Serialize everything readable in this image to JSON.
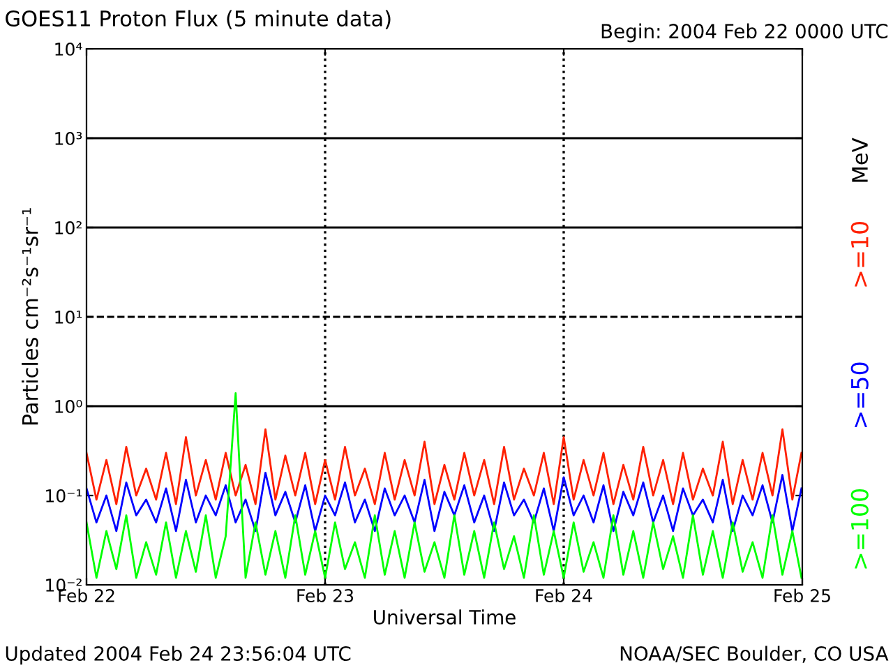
{
  "chart_data": {
    "type": "line",
    "title": "GOES11 Proton Flux (5 minute data)",
    "subtitle": "Begin: 2004 Feb 22 0000 UTC",
    "xlabel": "Universal Time",
    "ylabel": "Particles cm⁻²s⁻¹sr⁻¹",
    "legend_title": "MeV",
    "annotations": [
      "Updated 2004 Feb 24 23:56:04 UTC",
      "NOAA/SEC Boulder, CO USA"
    ],
    "x": [
      "2004-02-22T00:00",
      "2004-02-22T01:00",
      "2004-02-22T02:00",
      "2004-02-22T03:00",
      "2004-02-22T04:00",
      "2004-02-22T05:00",
      "2004-02-22T06:00",
      "2004-02-22T07:00",
      "2004-02-22T08:00",
      "2004-02-22T09:00",
      "2004-02-22T10:00",
      "2004-02-22T11:00",
      "2004-02-22T12:00",
      "2004-02-22T13:00",
      "2004-02-22T14:00",
      "2004-02-22T15:00",
      "2004-02-22T16:00",
      "2004-02-22T17:00",
      "2004-02-22T18:00",
      "2004-02-22T19:00",
      "2004-02-22T20:00",
      "2004-02-22T21:00",
      "2004-02-22T22:00",
      "2004-02-22T23:00",
      "2004-02-23T00:00",
      "2004-02-23T01:00",
      "2004-02-23T02:00",
      "2004-02-23T03:00",
      "2004-02-23T04:00",
      "2004-02-23T05:00",
      "2004-02-23T06:00",
      "2004-02-23T07:00",
      "2004-02-23T08:00",
      "2004-02-23T09:00",
      "2004-02-23T10:00",
      "2004-02-23T11:00",
      "2004-02-23T12:00",
      "2004-02-23T13:00",
      "2004-02-23T14:00",
      "2004-02-23T15:00",
      "2004-02-23T16:00",
      "2004-02-23T17:00",
      "2004-02-23T18:00",
      "2004-02-23T19:00",
      "2004-02-23T20:00",
      "2004-02-23T21:00",
      "2004-02-23T22:00",
      "2004-02-23T23:00",
      "2004-02-24T00:00",
      "2004-02-24T01:00",
      "2004-02-24T02:00",
      "2004-02-24T03:00",
      "2004-02-24T04:00",
      "2004-02-24T05:00",
      "2004-02-24T06:00",
      "2004-02-24T07:00",
      "2004-02-24T08:00",
      "2004-02-24T09:00",
      "2004-02-24T10:00",
      "2004-02-24T11:00",
      "2004-02-24T12:00",
      "2004-02-24T13:00",
      "2004-02-24T14:00",
      "2004-02-24T15:00",
      "2004-02-24T16:00",
      "2004-02-24T17:00",
      "2004-02-24T18:00",
      "2004-02-24T19:00",
      "2004-02-24T20:00",
      "2004-02-24T21:00",
      "2004-02-24T22:00",
      "2004-02-24T23:00",
      "2004-02-24T23:55"
    ],
    "series": [
      {
        "name": ">=10",
        "color": "#ff2000",
        "values": [
          0.3,
          0.09,
          0.25,
          0.08,
          0.35,
          0.1,
          0.2,
          0.09,
          0.3,
          0.08,
          0.45,
          0.1,
          0.25,
          0.09,
          0.3,
          0.1,
          0.22,
          0.08,
          0.55,
          0.09,
          0.28,
          0.1,
          0.3,
          0.08,
          0.25,
          0.09,
          0.35,
          0.1,
          0.2,
          0.08,
          0.3,
          0.09,
          0.25,
          0.1,
          0.4,
          0.08,
          0.22,
          0.09,
          0.3,
          0.1,
          0.25,
          0.08,
          0.35,
          0.09,
          0.2,
          0.1,
          0.3,
          0.08,
          0.45,
          0.09,
          0.25,
          0.1,
          0.3,
          0.08,
          0.22,
          0.09,
          0.35,
          0.1,
          0.25,
          0.08,
          0.3,
          0.09,
          0.2,
          0.1,
          0.4,
          0.08,
          0.25,
          0.09,
          0.3,
          0.1,
          0.55,
          0.09,
          0.3
        ]
      },
      {
        "name": ">=50",
        "color": "#0000ff",
        "values": [
          0.12,
          0.05,
          0.1,
          0.04,
          0.14,
          0.06,
          0.09,
          0.05,
          0.12,
          0.04,
          0.15,
          0.05,
          0.1,
          0.06,
          0.13,
          0.05,
          0.09,
          0.04,
          0.18,
          0.06,
          0.11,
          0.05,
          0.13,
          0.04,
          0.1,
          0.06,
          0.14,
          0.05,
          0.09,
          0.04,
          0.12,
          0.06,
          0.1,
          0.05,
          0.15,
          0.04,
          0.11,
          0.06,
          0.13,
          0.05,
          0.1,
          0.04,
          0.14,
          0.06,
          0.09,
          0.05,
          0.12,
          0.04,
          0.16,
          0.06,
          0.1,
          0.05,
          0.13,
          0.04,
          0.11,
          0.06,
          0.14,
          0.05,
          0.1,
          0.04,
          0.12,
          0.06,
          0.09,
          0.05,
          0.15,
          0.04,
          0.1,
          0.06,
          0.13,
          0.05,
          0.17,
          0.04,
          0.12
        ]
      },
      {
        "name": ">=100",
        "color": "#00ff00",
        "values": [
          0.05,
          0.012,
          0.04,
          0.015,
          0.06,
          0.012,
          0.03,
          0.013,
          0.05,
          0.012,
          0.04,
          0.014,
          0.06,
          0.012,
          0.035,
          1.4,
          0.012,
          0.05,
          0.013,
          0.04,
          0.012,
          0.06,
          0.013,
          0.04,
          0.012,
          0.05,
          0.015,
          0.03,
          0.012,
          0.06,
          0.013,
          0.04,
          0.012,
          0.05,
          0.014,
          0.03,
          0.012,
          0.06,
          0.013,
          0.04,
          0.012,
          0.05,
          0.015,
          0.035,
          0.012,
          0.06,
          0.013,
          0.04,
          0.012,
          0.05,
          0.014,
          0.03,
          0.012,
          0.06,
          0.013,
          0.04,
          0.012,
          0.05,
          0.015,
          0.035,
          0.012,
          0.06,
          0.013,
          0.04,
          0.012,
          0.05,
          0.014,
          0.03,
          0.012,
          0.06,
          0.013,
          0.04,
          0.012
        ]
      }
    ],
    "log": "y",
    "xlim": [
      "2004-02-22T00:00",
      "2004-02-25T00:00"
    ],
    "xticks": [
      {
        "value": "2004-02-22T00:00",
        "label": "Feb 22"
      },
      {
        "value": "2004-02-23T00:00",
        "label": "Feb 23"
      },
      {
        "value": "2004-02-24T00:00",
        "label": "Feb 24"
      },
      {
        "value": "2004-02-25T00:00",
        "label": "Feb 25"
      }
    ],
    "ylim": [
      0.01,
      10000
    ],
    "yticks": [
      {
        "value": 0.01,
        "label": "10⁻²"
      },
      {
        "value": 0.1,
        "label": "10⁻¹"
      },
      {
        "value": 1,
        "label": "10⁰"
      },
      {
        "value": 10,
        "label": "10¹"
      },
      {
        "value": 100,
        "label": "10²"
      },
      {
        "value": 1000,
        "label": "10³"
      },
      {
        "value": 10000,
        "label": "10⁴"
      }
    ],
    "ref_lines": [
      {
        "axis": "y",
        "value": 1000,
        "color": "#000000",
        "line_style": "solid"
      },
      {
        "axis": "y",
        "value": 100,
        "color": "#000000",
        "line_style": "solid"
      },
      {
        "axis": "y",
        "value": 10,
        "color": "#000000",
        "line_style": "dashed"
      },
      {
        "axis": "y",
        "value": 1,
        "color": "#000000",
        "line_style": "solid"
      },
      {
        "axis": "x",
        "value": "2004-02-23T00:00",
        "color": "#000000",
        "line_style": "dotted"
      },
      {
        "axis": "x",
        "value": "2004-02-24T00:00",
        "color": "#000000",
        "line_style": "dotted"
      }
    ],
    "legend": "right",
    "grid": false
  }
}
